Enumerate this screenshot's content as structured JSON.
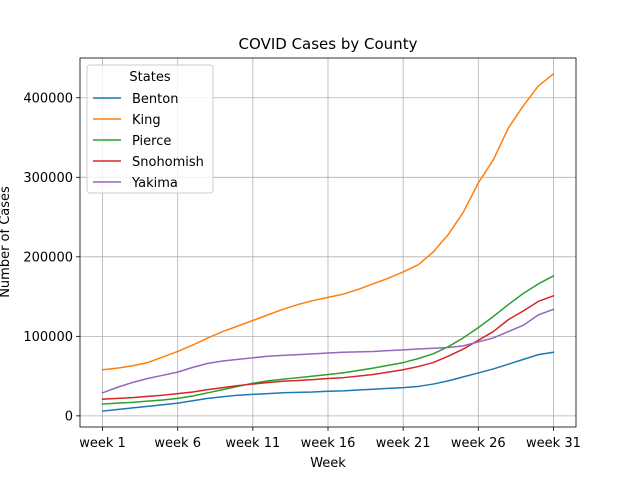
{
  "chart_data": {
    "type": "line",
    "title": "COVID Cases by County",
    "xlabel": "Week",
    "ylabel": "Number of Cases",
    "x": [
      1,
      2,
      3,
      4,
      5,
      6,
      7,
      8,
      9,
      10,
      11,
      12,
      13,
      14,
      15,
      16,
      17,
      18,
      19,
      20,
      21,
      22,
      23,
      24,
      25,
      26,
      27,
      28,
      29,
      30,
      31
    ],
    "xlim": [
      -0.5,
      32.5
    ],
    "ylim": [
      -14000,
      450000
    ],
    "xticks": [
      1,
      6,
      11,
      16,
      21,
      26,
      31
    ],
    "xtick_labels": [
      "week 1",
      "week 6",
      "week 11",
      "week 16",
      "week 21",
      "week 26",
      "week 31"
    ],
    "yticks": [
      0,
      100000,
      200000,
      300000,
      400000
    ],
    "ytick_labels": [
      "0",
      "100000",
      "200000",
      "300000",
      "400000"
    ],
    "grid": true,
    "legend": {
      "title": "States",
      "placement": "upper-left"
    },
    "series": [
      {
        "name": "Benton",
        "color": "#1f77b4",
        "values": [
          6000,
          8000,
          10000,
          12000,
          14000,
          16000,
          19000,
          22000,
          24000,
          26000,
          27000,
          28000,
          29000,
          29500,
          30000,
          31000,
          31500,
          32500,
          33500,
          34500,
          35500,
          37000,
          40000,
          44000,
          49000,
          54000,
          59000,
          65000,
          71000,
          77000,
          80000
        ]
      },
      {
        "name": "King",
        "color": "#ff7f0e",
        "values": [
          58000,
          60000,
          63000,
          67000,
          74000,
          81000,
          89000,
          98000,
          106000,
          113000,
          120000,
          127000,
          134000,
          140000,
          145000,
          149000,
          153000,
          159000,
          166000,
          173000,
          181000,
          190000,
          206000,
          228000,
          256000,
          293000,
          322000,
          362000,
          390000,
          415000,
          430000
        ]
      },
      {
        "name": "Pierce",
        "color": "#2ca02c",
        "values": [
          15000,
          16000,
          17000,
          18500,
          20000,
          22000,
          25000,
          29000,
          33000,
          37000,
          41000,
          44000,
          46000,
          48000,
          50000,
          52000,
          54000,
          57000,
          60000,
          63500,
          67000,
          72000,
          78000,
          87000,
          98000,
          111000,
          125000,
          140000,
          154000,
          166000,
          176000
        ]
      },
      {
        "name": "Snohomish",
        "color": "#d62728",
        "values": [
          21000,
          22000,
          23000,
          24500,
          26000,
          28000,
          30000,
          33000,
          35500,
          38000,
          40000,
          42000,
          43500,
          44500,
          45500,
          47000,
          48000,
          50000,
          52000,
          55000,
          58000,
          62000,
          67000,
          75000,
          84000,
          95000,
          106000,
          121000,
          132000,
          144000,
          151000
        ]
      },
      {
        "name": "Yakima",
        "color": "#9467bd",
        "values": [
          29000,
          36000,
          42000,
          47000,
          51000,
          55000,
          61000,
          66000,
          69000,
          71000,
          73000,
          75000,
          76000,
          77000,
          78000,
          79000,
          80000,
          80500,
          81000,
          82000,
          83000,
          84000,
          85000,
          86000,
          88000,
          93000,
          98000,
          106000,
          114000,
          127000,
          134000
        ]
      }
    ]
  }
}
